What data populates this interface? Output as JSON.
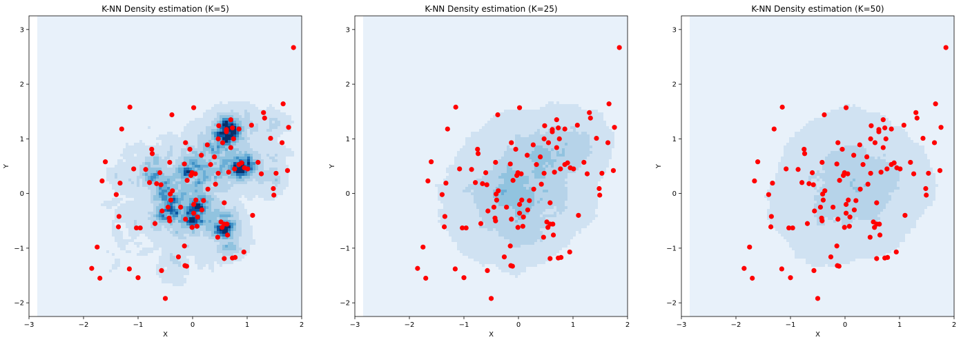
{
  "colors": {
    "points": "#ff0000",
    "levels": [
      "#e8f1fa",
      "#d0e2f2",
      "#b6d3e9",
      "#91c3df",
      "#6aaed6",
      "#4091c5",
      "#2272b5",
      "#0c56a0",
      "#08306b"
    ]
  },
  "chart_data": [
    {
      "type": "scatter",
      "title": "K-NN Density estimation (K=5)",
      "xlabel": "X",
      "ylabel": "Y",
      "xlim": [
        -3,
        2
      ],
      "ylim": [
        -2.25,
        3.25
      ],
      "xticks": [
        -3,
        -2,
        -1,
        0,
        1,
        2
      ],
      "xtick_labels": [
        "−3",
        "−2",
        "−1",
        "0",
        "1",
        "2"
      ],
      "yticks": [
        -2,
        -1,
        0,
        1,
        2,
        3
      ],
      "ytick_labels": [
        "−2",
        "−1",
        "0",
        "1",
        "2",
        "3"
      ],
      "k": 5
    },
    {
      "type": "scatter",
      "title": "K-NN Density estimation (K=25)",
      "xlabel": "X",
      "ylabel": "Y",
      "xlim": [
        -3,
        2
      ],
      "ylim": [
        -2.25,
        3.25
      ],
      "xticks": [
        -3,
        -2,
        -1,
        0,
        1,
        2
      ],
      "xtick_labels": [
        "−3",
        "−2",
        "−1",
        "0",
        "1",
        "2"
      ],
      "yticks": [
        -2,
        -1,
        0,
        1,
        2,
        3
      ],
      "ytick_labels": [
        "−2",
        "−1",
        "0",
        "1",
        "2",
        "3"
      ],
      "k": 25
    },
    {
      "type": "scatter",
      "title": "K-NN Density estimation (K=50)",
      "xlabel": "X",
      "ylabel": "Y",
      "xlim": [
        -3,
        2
      ],
      "ylim": [
        -2.25,
        3.25
      ],
      "xticks": [
        -3,
        -2,
        -1,
        0,
        1,
        2
      ],
      "xtick_labels": [
        "−3",
        "−2",
        "−1",
        "0",
        "1",
        "2"
      ],
      "yticks": [
        -2,
        -1,
        0,
        1,
        2,
        3
      ],
      "ytick_labels": [
        "−2",
        "−1",
        "0",
        "1",
        "2",
        "3"
      ],
      "k": 50
    }
  ],
  "points": [
    [
      1.85,
      2.67
    ],
    [
      1.66,
      1.64
    ],
    [
      1.3,
      1.48
    ],
    [
      1.32,
      1.38
    ],
    [
      1.76,
      1.21
    ],
    [
      -0.38,
      1.44
    ],
    [
      0.02,
      1.57
    ],
    [
      -1.15,
      1.58
    ],
    [
      -1.3,
      1.18
    ],
    [
      0.7,
      1.35
    ],
    [
      0.62,
      1.17
    ],
    [
      0.62,
      1.13
    ],
    [
      0.85,
      1.18
    ],
    [
      0.73,
      1.2
    ],
    [
      1.08,
      1.25
    ],
    [
      0.48,
      1.24
    ],
    [
      0.75,
      1.0
    ],
    [
      1.43,
      1.01
    ],
    [
      1.64,
      0.93
    ],
    [
      0.47,
      1.0
    ],
    [
      -0.13,
      0.93
    ],
    [
      -0.75,
      0.81
    ],
    [
      -0.74,
      0.73
    ],
    [
      -0.05,
      0.81
    ],
    [
      0.27,
      0.89
    ],
    [
      0.55,
      0.93
    ],
    [
      0.7,
      0.84
    ],
    [
      0.16,
      0.7
    ],
    [
      0.4,
      0.67
    ],
    [
      0.9,
      0.56
    ],
    [
      1.2,
      0.57
    ],
    [
      -1.6,
      0.58
    ],
    [
      -0.42,
      0.57
    ],
    [
      0.85,
      0.53
    ],
    [
      -0.15,
      0.54
    ],
    [
      0.33,
      0.53
    ],
    [
      0.77,
      0.45
    ],
    [
      -1.08,
      0.45
    ],
    [
      -0.86,
      0.44
    ],
    [
      1.01,
      0.45
    ],
    [
      0.95,
      0.47
    ],
    [
      1.74,
      0.42
    ],
    [
      -0.01,
      0.38
    ],
    [
      0.05,
      0.36
    ],
    [
      -0.03,
      0.33
    ],
    [
      0.47,
      0.37
    ],
    [
      0.66,
      0.39
    ],
    [
      1.26,
      0.36
    ],
    [
      1.53,
      0.37
    ],
    [
      -0.6,
      0.38
    ],
    [
      -0.1,
      0.24
    ],
    [
      -1.66,
      0.23
    ],
    [
      -1.33,
      0.19
    ],
    [
      -0.79,
      0.2
    ],
    [
      -0.58,
      0.16
    ],
    [
      -0.66,
      0.18
    ],
    [
      0.42,
      0.17
    ],
    [
      -0.37,
      0.05
    ],
    [
      0.28,
      0.08
    ],
    [
      1.48,
      0.09
    ],
    [
      -0.41,
      -0.01
    ],
    [
      -1.4,
      -0.02
    ],
    [
      1.49,
      -0.03
    ],
    [
      -0.4,
      -0.12
    ],
    [
      0.06,
      -0.12
    ],
    [
      0.2,
      -0.13
    ],
    [
      0.02,
      -0.2
    ],
    [
      0.58,
      -0.17
    ],
    [
      -0.45,
      -0.25
    ],
    [
      0.17,
      -0.3
    ],
    [
      -0.56,
      -0.32
    ],
    [
      -0.22,
      -0.25
    ],
    [
      0.02,
      -0.36
    ],
    [
      0.09,
      -0.43
    ],
    [
      -0.43,
      -0.45
    ],
    [
      -0.42,
      -0.5
    ],
    [
      -0.13,
      -0.47
    ],
    [
      1.1,
      -0.4
    ],
    [
      -1.35,
      -0.42
    ],
    [
      -0.69,
      -0.55
    ],
    [
      0.52,
      -0.52
    ],
    [
      0.58,
      -0.56
    ],
    [
      0.63,
      -0.56
    ],
    [
      -0.01,
      -0.62
    ],
    [
      0.08,
      -0.6
    ],
    [
      -1.36,
      -0.61
    ],
    [
      -1.03,
      -0.63
    ],
    [
      -0.96,
      -0.63
    ],
    [
      0.54,
      -0.62
    ],
    [
      0.46,
      -0.8
    ],
    [
      0.64,
      -0.76
    ],
    [
      0.94,
      -1.07
    ],
    [
      -0.15,
      -0.96
    ],
    [
      -1.75,
      -0.98
    ],
    [
      -0.26,
      -1.16
    ],
    [
      0.58,
      -1.19
    ],
    [
      0.78,
      -1.17
    ],
    [
      0.73,
      -1.18
    ],
    [
      -0.11,
      -1.33
    ],
    [
      -0.14,
      -1.32
    ],
    [
      -1.85,
      -1.37
    ],
    [
      -1.16,
      -1.38
    ],
    [
      -0.57,
      -1.41
    ],
    [
      -1.7,
      -1.55
    ],
    [
      -1.0,
      -1.54
    ],
    [
      -0.5,
      -1.92
    ]
  ]
}
